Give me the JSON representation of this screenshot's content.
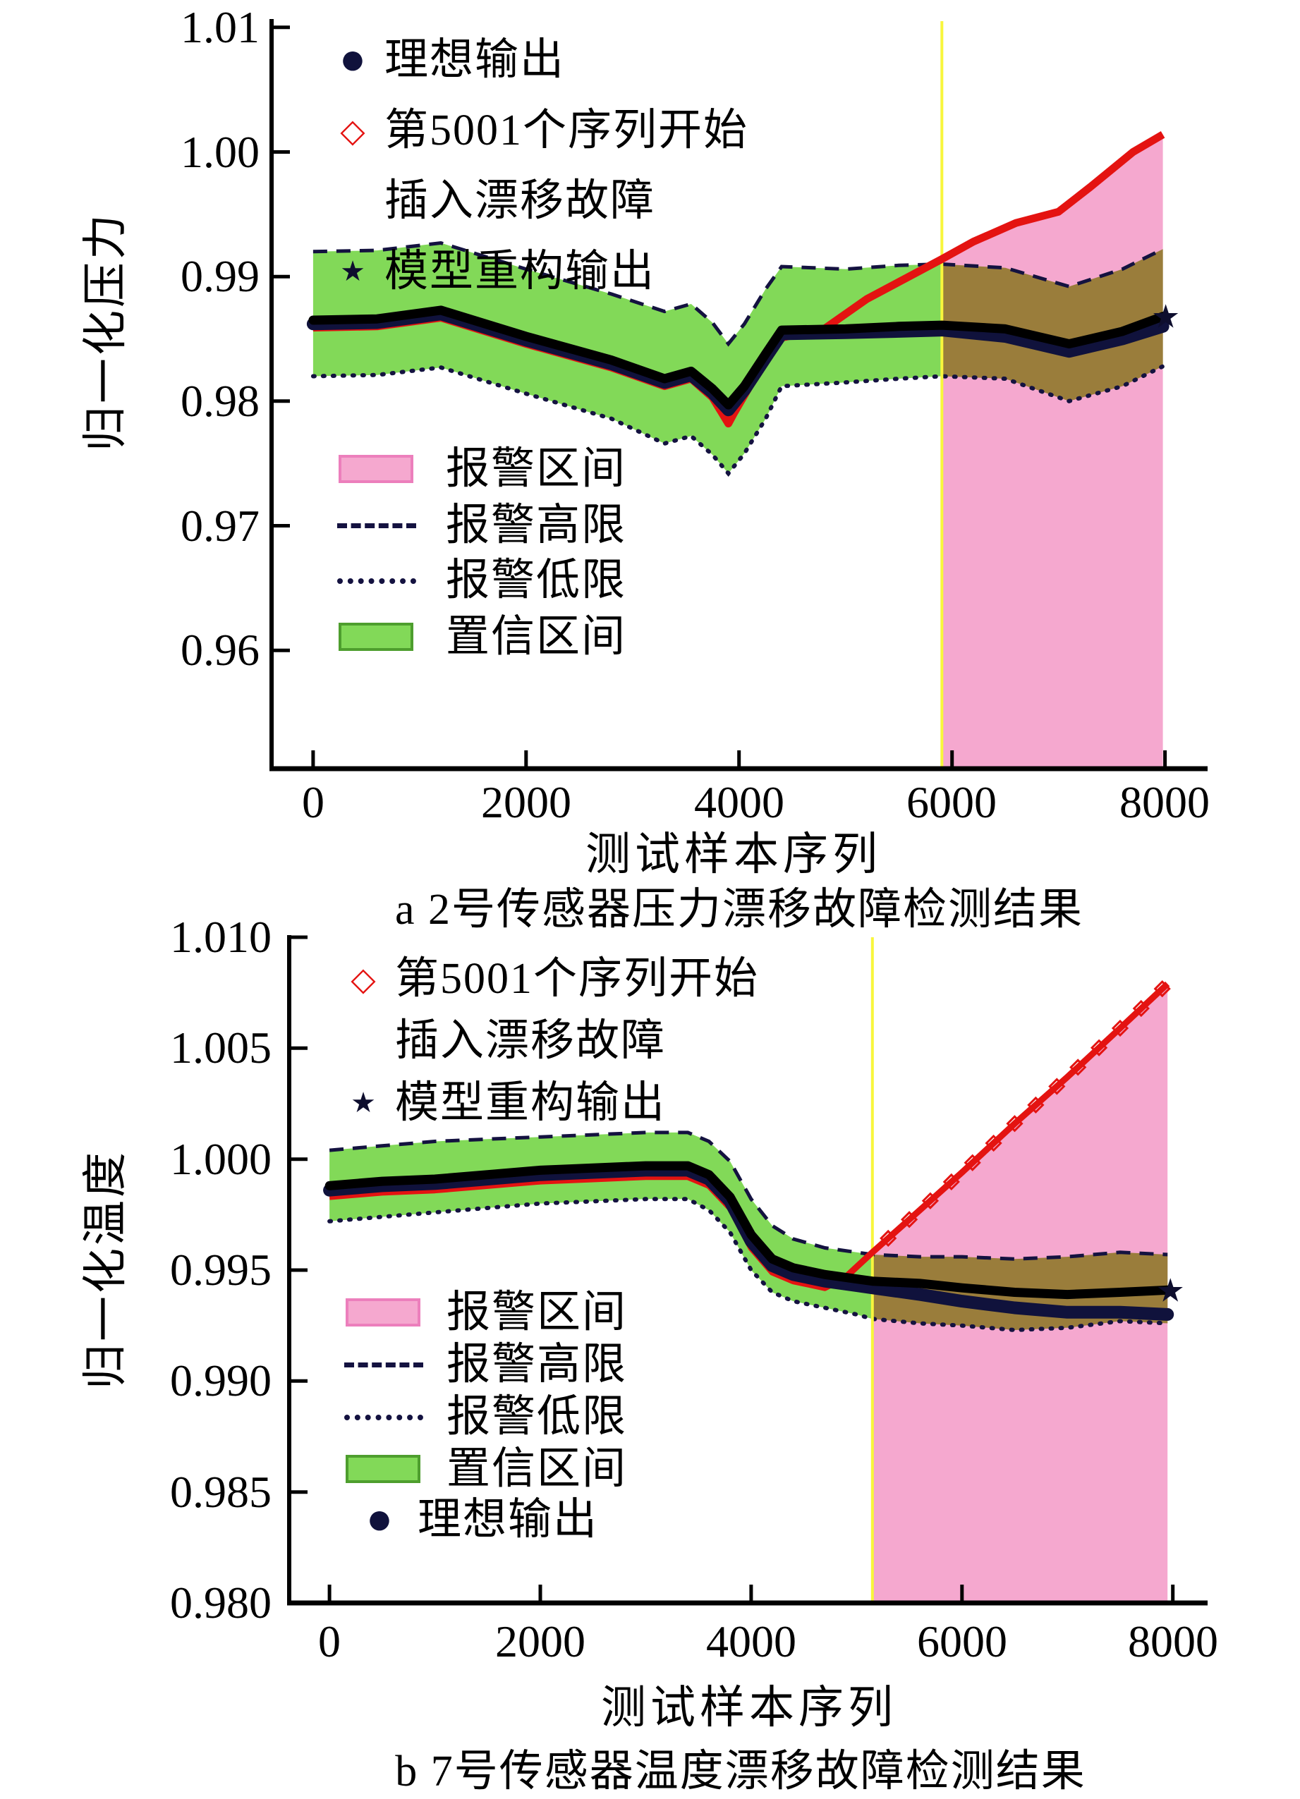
{
  "figure_title": "传感器漂移故障检测结果",
  "markers": {
    "dot": "●",
    "diamond": "◇",
    "star": "★"
  },
  "colors": {
    "confidence_band": "#82D958",
    "confidence_swatch_border": "#4E9E2E",
    "alarm_region": "#F5A8CF",
    "alarm_swatch_border": "#EC7FBC",
    "band_in_alarm_overlap": "#9A7D3B",
    "limit_line": "#141240",
    "ideal_line": "#10123C",
    "fault_line": "#E41311",
    "fault_onset_vline": "#F8F63C",
    "reconstruction_line": "#000000",
    "star_marker": "#0E0E2E"
  },
  "chart_data": [
    {
      "type": "line",
      "caption": "a 2号传感器压力漂移故障检测结果",
      "xlabel": "测试样本序列",
      "ylabel": "归一化压力",
      "xlim": [
        -390,
        8400
      ],
      "ylim": [
        0.9505,
        1.0105
      ],
      "xtick_values": [
        0,
        2000,
        4000,
        6000,
        8000
      ],
      "xtick_labels": [
        "0",
        "2000",
        "4000",
        "6000",
        "8000"
      ],
      "ytick_values": [
        1.01,
        1.0,
        0.99,
        0.98,
        0.97,
        0.96
      ],
      "ytick_labels": [
        "1.01",
        "1.00",
        "0.99",
        "0.98",
        "0.97",
        "0.96"
      ],
      "fault_start_sample": 5001,
      "vline_x": 5905,
      "alarm_region": {
        "x_start": 5905,
        "x_end": 7980
      },
      "legend1": [
        {
          "marker": "dot",
          "label": "理想输出"
        },
        {
          "marker": "diamond",
          "label": "第5001个序列开始",
          "label2": "插入漂移故障"
        },
        {
          "marker": "star",
          "label": "模型重构输出"
        }
      ],
      "legend2": [
        {
          "swatch": "pink",
          "label": "报警区间"
        },
        {
          "swatch": "dashed",
          "label": "报警高限"
        },
        {
          "swatch": "dotted",
          "label": "报警低限"
        },
        {
          "swatch": "green",
          "label": "置信区间"
        }
      ],
      "series": {
        "band_x": [
          0,
          600,
          1200,
          2000,
          2800,
          3300,
          3550,
          3750,
          3900,
          4050,
          4250,
          4400,
          5000,
          5500,
          5905,
          6500,
          7100,
          7600,
          7980
        ],
        "alarm_high": [
          0.992,
          0.9921,
          0.9927,
          0.9906,
          0.9886,
          0.9872,
          0.9878,
          0.9863,
          0.9846,
          0.9862,
          0.989,
          0.9908,
          0.9906,
          0.9909,
          0.991,
          0.9907,
          0.9892,
          0.9906,
          0.9922
        ],
        "alarm_low": [
          0.982,
          0.9821,
          0.9827,
          0.9806,
          0.9786,
          0.9766,
          0.9772,
          0.9757,
          0.9742,
          0.9758,
          0.9786,
          0.9812,
          0.9815,
          0.9818,
          0.982,
          0.9818,
          0.98,
          0.9812,
          0.9828
        ],
        "reconstruction": [
          0.9865,
          0.9866,
          0.9873,
          0.9852,
          0.9833,
          0.9818,
          0.9824,
          0.981,
          0.9797,
          0.9812,
          0.9838,
          0.9857,
          0.9858,
          0.986,
          0.9861,
          0.9858,
          0.9846,
          0.9856,
          0.9868
        ],
        "ideal": [
          0.9862,
          0.9863,
          0.987,
          0.9849,
          0.983,
          0.9815,
          0.9821,
          0.9807,
          0.9793,
          0.9809,
          0.9835,
          0.9854,
          0.9855,
          0.9856,
          0.9857,
          0.9852,
          0.984,
          0.985,
          0.986
        ],
        "fault_x": [
          0,
          600,
          1200,
          2000,
          2800,
          3300,
          3550,
          3750,
          3850,
          3900,
          3950,
          4100,
          4250,
          4400,
          4800,
          5200,
          5905,
          6200,
          6600,
          7000,
          7300,
          7700,
          7980
        ],
        "fault": [
          0.9859,
          0.986,
          0.9867,
          0.9846,
          0.9827,
          0.9812,
          0.9818,
          0.9803,
          0.9789,
          0.9782,
          0.979,
          0.9812,
          0.9834,
          0.9851,
          0.9858,
          0.9882,
          0.9914,
          0.9928,
          0.9943,
          0.9952,
          0.9972,
          1.0,
          1.0014
        ],
        "fault_marker_xs": []
      }
    },
    {
      "type": "line",
      "caption": "b 7号传感器温度漂移故障检测结果",
      "xlabel": "测试样本序列",
      "ylabel": "归一化温度",
      "xlim": [
        -382,
        8330
      ],
      "ylim": [
        0.98,
        1.01
      ],
      "xtick_values": [
        0,
        2000,
        4000,
        6000,
        8000
      ],
      "xtick_labels": [
        "0",
        "2000",
        "4000",
        "6000",
        "8000"
      ],
      "ytick_values": [
        1.01,
        1.005,
        1.0,
        0.995,
        0.99,
        0.985,
        0.98
      ],
      "ytick_labels": [
        "1.010",
        "1.005",
        "1.000",
        "0.995",
        "0.990",
        "0.985",
        "0.980"
      ],
      "fault_start_sample": 5001,
      "vline_x": 5150,
      "alarm_region": {
        "x_start": 5150,
        "x_end": 7950
      },
      "legend1": [
        {
          "marker": "diamond",
          "label": "第5001个序列开始",
          "label2": "插入漂移故障"
        },
        {
          "marker": "star",
          "label": "模型重构输出"
        }
      ],
      "legend2": [
        {
          "swatch": "pink",
          "label": "报警区间"
        },
        {
          "swatch": "dashed",
          "label": "报警高限"
        },
        {
          "swatch": "dotted",
          "label": "报警低限"
        },
        {
          "swatch": "green",
          "label": "置信区间"
        },
        {
          "marker": "dot",
          "label": "理想输出"
        }
      ],
      "series": {
        "band_x": [
          0,
          500,
          1000,
          1500,
          2000,
          2500,
          3000,
          3400,
          3600,
          3800,
          4000,
          4200,
          4400,
          4700,
          5000,
          5150,
          5600,
          6000,
          6500,
          7000,
          7500,
          7950
        ],
        "alarm_high": [
          1.0004,
          1.0006,
          1.0008,
          1.0009,
          1.001,
          1.0011,
          1.0012,
          1.0012,
          1.0008,
          0.9999,
          0.9982,
          0.997,
          0.9964,
          0.996,
          0.9958,
          0.9957,
          0.9956,
          0.9956,
          0.9955,
          0.9956,
          0.9958,
          0.9957
        ],
        "alarm_low": [
          0.9972,
          0.9974,
          0.9976,
          0.9978,
          0.998,
          0.9981,
          0.9982,
          0.9982,
          0.9977,
          0.9967,
          0.995,
          0.994,
          0.9936,
          0.9933,
          0.993,
          0.9928,
          0.9926,
          0.9925,
          0.9923,
          0.9924,
          0.9927,
          0.9926
        ],
        "reconstruction": [
          0.9988,
          0.999,
          0.9991,
          0.9993,
          0.9995,
          0.9996,
          0.9997,
          0.9997,
          0.9993,
          0.9983,
          0.9966,
          0.9955,
          0.9951,
          0.9948,
          0.9946,
          0.9945,
          0.9944,
          0.9942,
          0.994,
          0.9939,
          0.994,
          0.9941
        ],
        "ideal": [
          0.9986,
          0.9988,
          0.9989,
          0.9991,
          0.9993,
          0.9994,
          0.9995,
          0.9995,
          0.9991,
          0.9981,
          0.9963,
          0.9952,
          0.9948,
          0.9945,
          0.9943,
          0.9942,
          0.9939,
          0.9936,
          0.9933,
          0.9931,
          0.9931,
          0.993
        ],
        "fault_x": [
          0,
          500,
          1000,
          1500,
          2000,
          2500,
          3000,
          3400,
          3600,
          3800,
          4000,
          4200,
          4400,
          4700,
          4900,
          5150,
          5600,
          6000,
          6500,
          7000,
          7500,
          7950
        ],
        "fault": [
          0.9983,
          0.9985,
          0.9986,
          0.9988,
          0.999,
          0.9991,
          0.9992,
          0.9992,
          0.9988,
          0.9978,
          0.996,
          0.9949,
          0.9945,
          0.9942,
          0.9947,
          0.9958,
          0.9977,
          0.9994,
          1.0016,
          1.0037,
          1.0059,
          1.0079
        ],
        "fault_marker_xs": [
          5300,
          5500,
          5700,
          5900,
          6100,
          6300,
          6500,
          6700,
          6900,
          7100,
          7300,
          7500,
          7700,
          7900
        ]
      }
    }
  ]
}
